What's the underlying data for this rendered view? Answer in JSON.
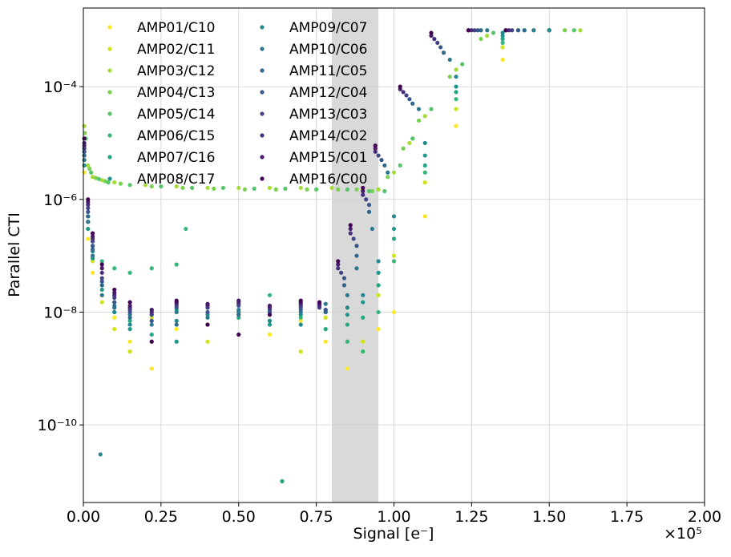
{
  "chart_data": {
    "type": "scatter",
    "x_label": "Signal [e⁻]",
    "y_label": "Parallel CTI",
    "x_offset_label": "×10⁵",
    "xlim": [
      0,
      200000
    ],
    "ylim": [
      4.2e-12,
      0.00248
    ],
    "log_y": true,
    "grid": true,
    "legend_position": "upper left",
    "shaded_region": {
      "xmin": 80000,
      "xmax": 95000,
      "color": "#d9d9d9"
    },
    "xticks": [
      {
        "value": 0,
        "label": "0.00"
      },
      {
        "value": 25000,
        "label": "0.25"
      },
      {
        "value": 50000,
        "label": "0.50"
      },
      {
        "value": 75000,
        "label": "0.75"
      },
      {
        "value": 100000,
        "label": "1.00"
      },
      {
        "value": 125000,
        "label": "1.25"
      },
      {
        "value": 150000,
        "label": "1.50"
      },
      {
        "value": 175000,
        "label": "1.75"
      },
      {
        "value": 200000,
        "label": "2.00"
      }
    ],
    "yticks": [
      {
        "value": 1e-10,
        "label": "10⁻¹⁰"
      },
      {
        "value": 1e-08,
        "label": "10⁻⁸"
      },
      {
        "value": 1e-06,
        "label": "10⁻⁶"
      },
      {
        "value": 0.0001,
        "label": "10⁻⁴"
      }
    ],
    "series": [
      {
        "name": "AMP01/C10",
        "color": "#fde725",
        "x": [
          300,
          1500,
          3000,
          6000,
          10000,
          15000,
          22000,
          30000,
          40000,
          50000,
          60000,
          70000,
          78000,
          85000,
          90000,
          95000,
          100000,
          110000,
          120000,
          135000,
          150000
        ],
        "values": [
          3e-06,
          2e-07,
          5e-08,
          2e-08,
          8e-09,
          3e-09,
          1e-09,
          5e-09,
          6e-09,
          8e-09,
          4e-09,
          7e-09,
          3e-09,
          1e-09,
          2e-09,
          5e-09,
          1e-08,
          5e-07,
          2e-05,
          0.0003,
          0.001
        ]
      },
      {
        "name": "AMP02/C11",
        "color": "#d2e21b",
        "x": [
          300,
          1500,
          3000,
          6000,
          10000,
          15000,
          22000,
          30000,
          40000,
          50000,
          60000,
          70000,
          78000,
          85000,
          90000,
          95000,
          100000,
          110000,
          120000,
          135000,
          150000
        ],
        "values": [
          5e-06,
          3e-07,
          8e-08,
          1.5e-08,
          5e-09,
          2e-09,
          8e-09,
          1e-08,
          3e-09,
          9e-09,
          1.2e-08,
          2e-09,
          8e-09,
          6e-09,
          3e-09,
          2e-08,
          1e-07,
          2e-06,
          4e-05,
          0.0005,
          0.001
        ]
      },
      {
        "name": "AMP03/C12",
        "color": "#a5db36",
        "x": [
          300,
          1500,
          3000,
          6000,
          10000,
          20000,
          30000,
          40000,
          50000,
          60000,
          70000,
          80000,
          90000,
          95000,
          100000,
          105000,
          110000,
          120000,
          130000,
          145000,
          160000
        ],
        "values": [
          2e-05,
          4e-06,
          2.5e-06,
          2.2e-06,
          2e-06,
          1.8e-06,
          1.7e-06,
          1.6e-06,
          1.6e-06,
          1.6e-06,
          1.6e-06,
          1.6e-06,
          1.5e-06,
          1.5e-06,
          3e-06,
          1e-05,
          3e-05,
          0.0002,
          0.0008,
          0.001,
          0.001
        ]
      },
      {
        "name": "AMP04/C13",
        "color": "#7ad151",
        "x": [
          500,
          2000,
          4000,
          7000,
          12000,
          22000,
          32000,
          42000,
          52000,
          62000,
          72000,
          82000,
          88000,
          93000,
          98000,
          103000,
          108000,
          118000,
          128000,
          140000,
          155000
        ],
        "values": [
          1.5e-05,
          3.5e-06,
          2.4e-06,
          2.1e-06,
          1.9e-06,
          1.7e-06,
          1.6e-06,
          1.55e-06,
          1.5e-06,
          1.5e-06,
          1.5e-06,
          1.5e-06,
          1.5e-06,
          1.4e-06,
          2.5e-06,
          8e-06,
          2.5e-05,
          0.00015,
          0.0007,
          0.001,
          0.001
        ]
      },
      {
        "name": "AMP05/C14",
        "color": "#54c568",
        "x": [
          800,
          2500,
          5000,
          8000,
          15000,
          25000,
          35000,
          45000,
          55000,
          65000,
          75000,
          85000,
          92000,
          97000,
          102000,
          106000,
          112000,
          122000,
          132000,
          142000,
          158000
        ],
        "values": [
          1.2e-05,
          3e-06,
          2.3e-06,
          2e-06,
          1.8e-06,
          1.7e-06,
          1.6e-06,
          1.6e-06,
          1.55e-06,
          1.55e-06,
          1.5e-06,
          1.5e-06,
          1.4e-06,
          1.4e-06,
          4e-06,
          1.2e-05,
          4e-05,
          0.00025,
          0.0009,
          0.001,
          0.001
        ]
      },
      {
        "name": "AMP06/C15",
        "color": "#35b779",
        "x": [
          300,
          1500,
          3000,
          6000,
          10000,
          15000,
          22000,
          30000,
          33000,
          50000,
          60000,
          70000,
          78000,
          85000,
          90000,
          95000,
          100000,
          110000,
          120000,
          135000,
          150000
        ],
        "values": [
          8e-06,
          5e-07,
          1.5e-07,
          8e-08,
          6e-08,
          5e-08,
          6e-08,
          7e-08,
          3e-07,
          1e-08,
          2e-08,
          8e-09,
          1e-08,
          3e-09,
          2e-09,
          1e-08,
          8e-08,
          3e-06,
          6e-05,
          0.0006,
          0.001
        ]
      },
      {
        "name": "AMP07/C16",
        "color": "#22a884",
        "x": [
          300,
          1500,
          3000,
          6000,
          10000,
          15000,
          22000,
          30000,
          40000,
          50000,
          60000,
          64000,
          78000,
          85000,
          90000,
          95000,
          100000,
          110000,
          120000,
          135000,
          150000
        ],
        "values": [
          6e-06,
          4e-07,
          1e-07,
          3e-08,
          1.5e-08,
          7e-09,
          4e-09,
          1.1e-08,
          6e-09,
          8e-09,
          1e-08,
          1e-11,
          5e-09,
          6e-09,
          8e-09,
          3e-08,
          2e-07,
          4e-06,
          8e-05,
          0.0007,
          0.001
        ]
      },
      {
        "name": "AMP08/C17",
        "color": "#1f988b",
        "x": [
          300,
          1500,
          3000,
          6000,
          10000,
          15000,
          22000,
          30000,
          40000,
          50000,
          60000,
          70000,
          78000,
          85000,
          90000,
          95000,
          100000,
          110000,
          120000,
          135000,
          150000
        ],
        "values": [
          4e-06,
          3e-07,
          9e-08,
          2.5e-08,
          1e-08,
          5e-09,
          9e-09,
          3e-09,
          1.2e-08,
          4e-09,
          6e-09,
          9e-09,
          1.1e-08,
          9e-09,
          1.5e-08,
          5e-08,
          3e-07,
          6e-06,
          0.0001,
          0.0008,
          0.001
        ]
      },
      {
        "name": "AMP09/C07",
        "color": "#23888e",
        "x": [
          300,
          1500,
          3000,
          5500,
          10000,
          15000,
          22000,
          30000,
          40000,
          50000,
          60000,
          70000,
          78000,
          85000,
          90000,
          95000,
          100000,
          110000,
          120000,
          135000,
          150000
        ],
        "values": [
          7e-06,
          5e-07,
          1.2e-07,
          3e-11,
          1e-08,
          6e-09,
          1.1e-08,
          7e-09,
          9e-09,
          1e-08,
          7e-09,
          6e-09,
          1e-08,
          1.2e-08,
          2e-08,
          8e-08,
          5e-07,
          1e-05,
          0.00015,
          0.0009,
          0.001
        ]
      },
      {
        "name": "AMP10/C06",
        "color": "#2a788e",
        "x": [
          300,
          1500,
          3000,
          6000,
          10000,
          15000,
          22000,
          30000,
          40000,
          50000,
          60000,
          70000,
          78000,
          85000,
          88000,
          93000,
          98000,
          108000,
          118000,
          130000,
          145000
        ],
        "values": [
          5e-06,
          4e-07,
          1e-07,
          2e-08,
          1.3e-08,
          9e-09,
          6e-09,
          1e-08,
          8e-09,
          1.1e-08,
          9e-09,
          1e-08,
          1.4e-08,
          2e-08,
          6e-08,
          3e-07,
          3e-06,
          4e-05,
          0.0003,
          0.001,
          0.001
        ]
      },
      {
        "name": "AMP11/C05",
        "color": "#31688e",
        "x": [
          300,
          1500,
          3000,
          6000,
          10000,
          15000,
          22000,
          30000,
          40000,
          50000,
          60000,
          70000,
          78000,
          84000,
          88000,
          92000,
          97000,
          106000,
          116000,
          128000,
          142000
        ],
        "values": [
          6e-06,
          5e-07,
          1.3e-07,
          3e-08,
          1.2e-08,
          8e-09,
          1e-08,
          6e-09,
          1.3e-08,
          9e-09,
          1.2e-08,
          1.1e-08,
          1e-08,
          3e-08,
          1e-07,
          6e-07,
          4e-06,
          5e-05,
          0.0004,
          0.001,
          0.001
        ]
      },
      {
        "name": "AMP12/C04",
        "color": "#39568c",
        "x": [
          300,
          1500,
          3000,
          6000,
          10000,
          15000,
          22000,
          30000,
          40000,
          50000,
          60000,
          70000,
          78000,
          84000,
          88000,
          92000,
          96000,
          105000,
          115000,
          127000,
          140000
        ],
        "values": [
          7e-06,
          6e-07,
          1.5e-07,
          3.5e-08,
          1.5e-08,
          1e-08,
          7e-09,
          1.2e-08,
          1e-08,
          1.3e-08,
          1e-08,
          1.2e-08,
          1.1e-08,
          4e-08,
          1.5e-07,
          8e-07,
          5e-06,
          6e-05,
          0.0005,
          0.001,
          0.001
        ]
      },
      {
        "name": "AMP13/C03",
        "color": "#414487",
        "x": [
          300,
          1500,
          3000,
          6000,
          10000,
          15000,
          22000,
          30000,
          40000,
          50000,
          60000,
          70000,
          76000,
          83000,
          87000,
          91000,
          95000,
          104000,
          114000,
          126000,
          138000
        ],
        "values": [
          8e-06,
          7e-07,
          1.8e-07,
          4e-08,
          1.8e-08,
          1.1e-08,
          9e-09,
          1.3e-08,
          1.2e-08,
          1.4e-08,
          1.1e-08,
          1.3e-08,
          1.2e-08,
          5e-08,
          2e-07,
          1e-06,
          6e-06,
          7e-05,
          0.0006,
          0.001,
          0.001
        ]
      },
      {
        "name": "AMP14/C02",
        "color": "#472f7d",
        "x": [
          300,
          1500,
          3000,
          6000,
          10000,
          15000,
          22000,
          30000,
          40000,
          50000,
          60000,
          70000,
          76000,
          82000,
          86000,
          90000,
          94000,
          103000,
          113000,
          125000,
          137000
        ],
        "values": [
          9e-06,
          8e-07,
          2e-07,
          5e-08,
          2e-08,
          1.2e-08,
          1e-08,
          1.4e-08,
          1.3e-08,
          1.5e-08,
          1.2e-08,
          1.4e-08,
          1.3e-08,
          6e-08,
          2.5e-07,
          1.2e-06,
          7e-06,
          8e-05,
          0.0007,
          0.001,
          0.001
        ]
      },
      {
        "name": "AMP15/C01",
        "color": "#481a6c",
        "x": [
          300,
          1500,
          3000,
          6000,
          10000,
          15000,
          22000,
          30000,
          40000,
          50000,
          60000,
          70000,
          76000,
          82000,
          86000,
          90000,
          94000,
          102000,
          112000,
          124000,
          136000
        ],
        "values": [
          1e-05,
          9e-07,
          2.2e-07,
          6e-08,
          2.2e-08,
          1.3e-08,
          1.1e-08,
          1.5e-08,
          1.4e-08,
          1.6e-08,
          1.3e-08,
          1.5e-08,
          1.4e-08,
          7e-08,
          3e-07,
          1.4e-06,
          8e-06,
          9e-05,
          0.0008,
          0.001,
          0.001
        ]
      },
      {
        "name": "AMP16/C00",
        "color": "#440154",
        "x": [
          300,
          1500,
          3000,
          6000,
          10000,
          15000,
          22000,
          30000,
          40000,
          50000,
          60000,
          70000,
          76000,
          82000,
          86000,
          90000,
          94000,
          102000,
          112000,
          124000,
          136000
        ],
        "values": [
          1.2e-05,
          1e-06,
          2.5e-07,
          7e-08,
          2.5e-08,
          1.5e-08,
          3e-09,
          1.6e-08,
          6e-09,
          4e-09,
          9e-09,
          1.6e-08,
          1.5e-08,
          8e-08,
          3.5e-07,
          1.6e-06,
          9e-06,
          0.0001,
          0.0009,
          0.001,
          0.001
        ]
      }
    ]
  }
}
